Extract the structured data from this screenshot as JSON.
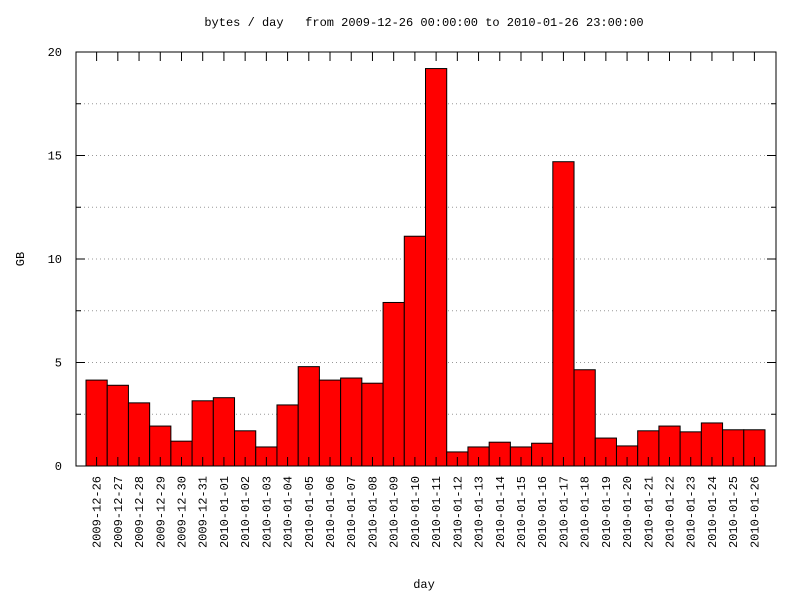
{
  "chart_data": {
    "type": "bar",
    "title": "bytes / day   from 2009-12-26 00:00:00 to 2010-01-26 23:00:00",
    "x_label": "day",
    "y_label": "GB",
    "categories": [
      "2009-12-26",
      "2009-12-27",
      "2009-12-28",
      "2009-12-29",
      "2009-12-30",
      "2009-12-31",
      "2010-01-01",
      "2010-01-02",
      "2010-01-03",
      "2010-01-04",
      "2010-01-05",
      "2010-01-06",
      "2010-01-07",
      "2010-01-08",
      "2010-01-09",
      "2010-01-10",
      "2010-01-11",
      "2010-01-12",
      "2010-01-13",
      "2010-01-14",
      "2010-01-15",
      "2010-01-16",
      "2010-01-17",
      "2010-01-18",
      "2010-01-19",
      "2010-01-20",
      "2010-01-21",
      "2010-01-22",
      "2010-01-23",
      "2010-01-24",
      "2010-01-25",
      "2010-01-26"
    ],
    "values": [
      4.15,
      3.9,
      3.05,
      1.93,
      1.2,
      3.15,
      3.3,
      1.7,
      0.92,
      2.95,
      4.8,
      4.15,
      4.25,
      4.0,
      7.9,
      11.1,
      19.2,
      0.68,
      0.92,
      1.15,
      0.92,
      1.1,
      14.7,
      4.65,
      1.35,
      0.97,
      1.7,
      1.93,
      1.65,
      2.08,
      1.75,
      1.75
    ],
    "color": "#ff0000",
    "ylim": [
      0,
      20
    ],
    "yticks": [
      0,
      5,
      10,
      15,
      20
    ],
    "yminorticks": [
      2.5,
      7.5,
      12.5,
      17.5
    ],
    "grid": true
  }
}
